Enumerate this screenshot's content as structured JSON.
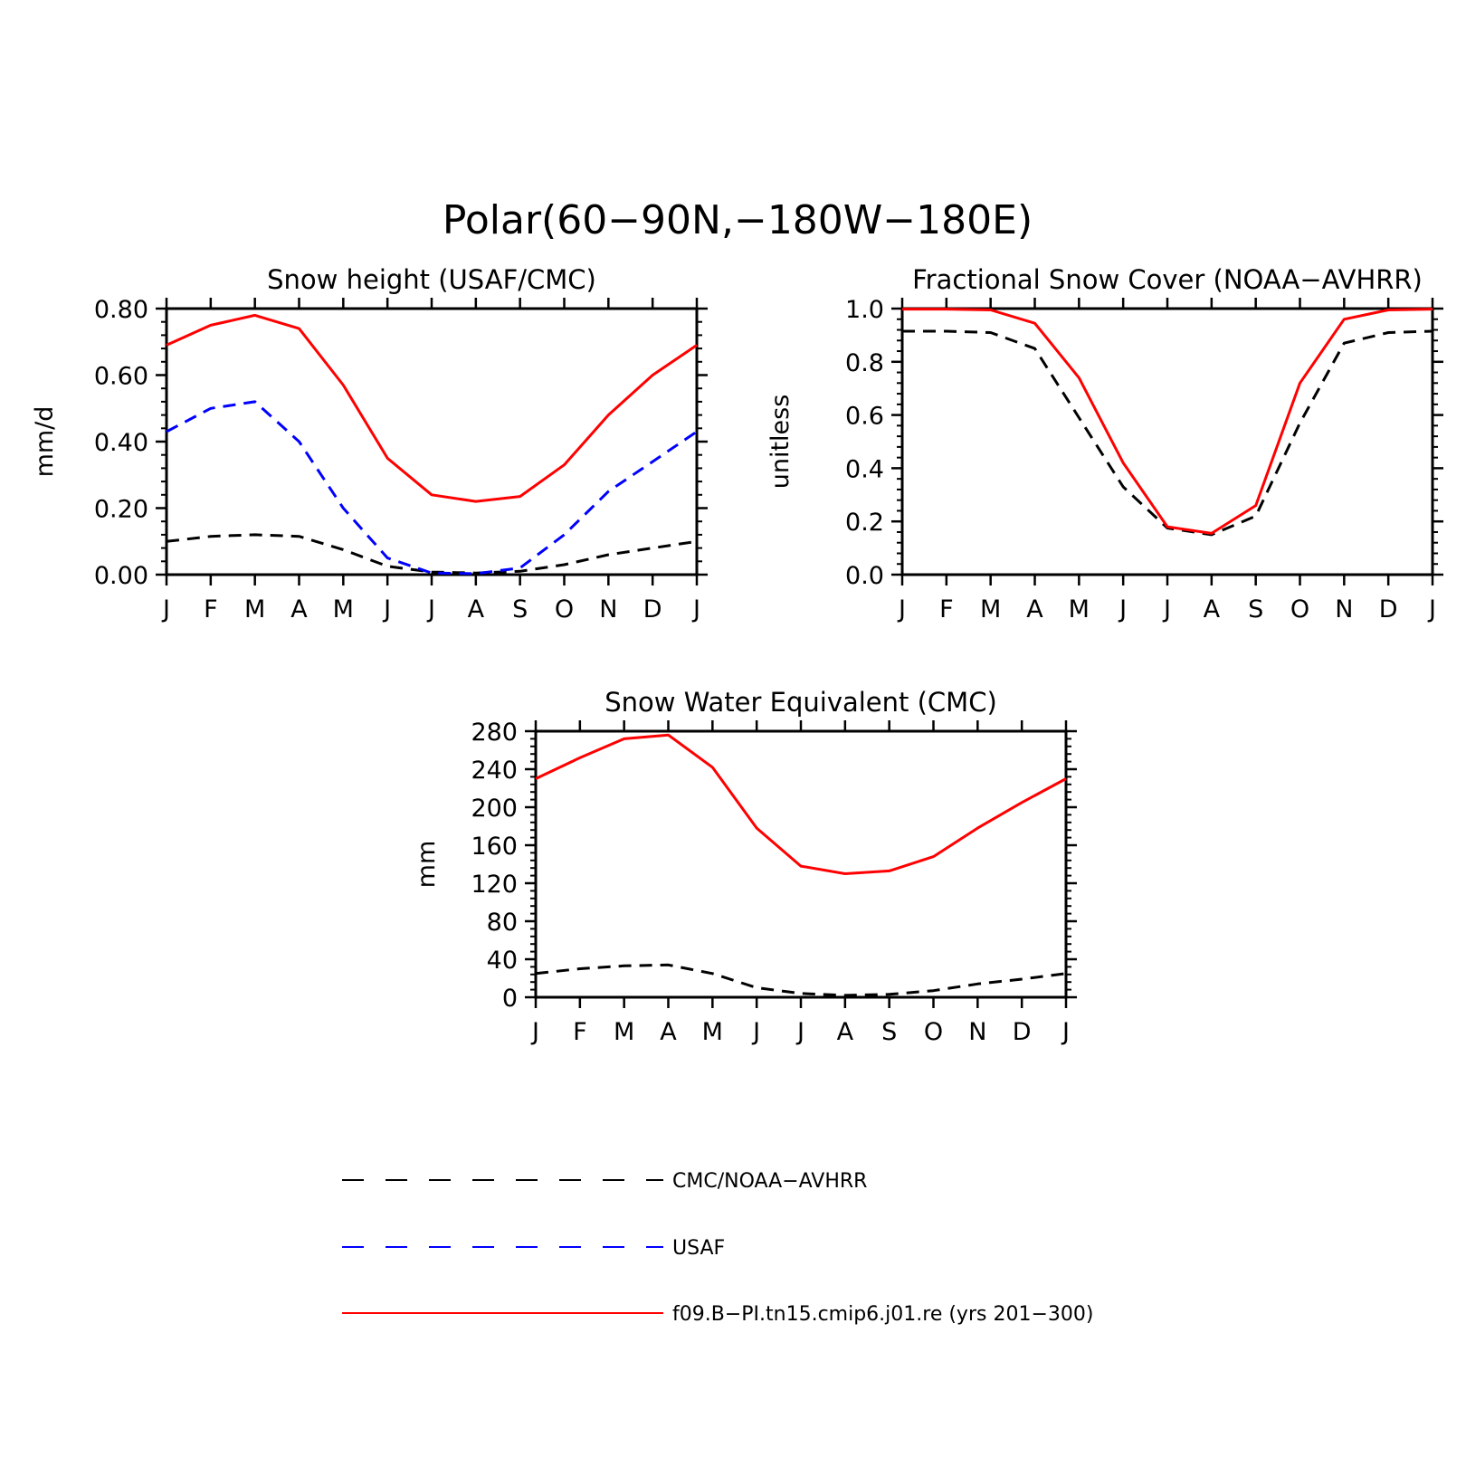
{
  "figure": {
    "title": "Polar(60−90N,−180W−180E)"
  },
  "colors": {
    "model": "#ff0000",
    "obs_black": "#000000",
    "obs_blue": "#0000ff"
  },
  "legend": {
    "items": [
      {
        "label": "CMC/NOAA−AVHRR",
        "color": "#000000",
        "dash": "dashed"
      },
      {
        "label": "USAF",
        "color": "#0000ff",
        "dash": "dashed"
      },
      {
        "label": "f09.B−PI.tn15.cmip6.j01.re (yrs 201−300)",
        "color": "#ff0000",
        "dash": "solid"
      }
    ]
  },
  "chart_data": [
    {
      "type": "line",
      "title": "Snow height (USAF/CMC)",
      "xlabel": "",
      "ylabel": "mm/d",
      "categories": [
        "J",
        "F",
        "M",
        "A",
        "M",
        "J",
        "J",
        "A",
        "S",
        "O",
        "N",
        "D",
        "J"
      ],
      "ylim": [
        0,
        0.8
      ],
      "yticks": [
        0,
        0.2,
        0.4,
        0.6,
        0.8
      ],
      "ytick_labels": [
        "0.00",
        "0.20",
        "0.40",
        "0.60",
        "0.80"
      ],
      "yminor_step": 0.04,
      "series": [
        {
          "name": "f09.B−PI.tn15.cmip6.j01.re (yrs 201−300)",
          "color": "#ff0000",
          "dash": "solid",
          "values": [
            0.69,
            0.75,
            0.78,
            0.74,
            0.57,
            0.35,
            0.24,
            0.22,
            0.235,
            0.33,
            0.48,
            0.6,
            0.69
          ]
        },
        {
          "name": "USAF",
          "color": "#0000ff",
          "dash": "dashed",
          "values": [
            0.43,
            0.5,
            0.52,
            0.4,
            0.2,
            0.05,
            0.005,
            0.003,
            0.02,
            0.12,
            0.25,
            0.34,
            0.43
          ]
        },
        {
          "name": "CMC/NOAA−AVHRR",
          "color": "#000000",
          "dash": "dashed",
          "values": [
            0.1,
            0.115,
            0.12,
            0.115,
            0.075,
            0.025,
            0.008,
            0.005,
            0.01,
            0.03,
            0.06,
            0.08,
            0.1
          ]
        }
      ]
    },
    {
      "type": "line",
      "title": "Fractional Snow Cover (NOAA−AVHRR)",
      "xlabel": "",
      "ylabel": "unitless",
      "categories": [
        "J",
        "F",
        "M",
        "A",
        "M",
        "J",
        "J",
        "A",
        "S",
        "O",
        "N",
        "D",
        "J"
      ],
      "ylim": [
        0,
        1.0
      ],
      "yticks": [
        0,
        0.2,
        0.4,
        0.6,
        0.8,
        1.0
      ],
      "ytick_labels": [
        "0.0",
        "0.2",
        "0.4",
        "0.6",
        "0.8",
        "1.0"
      ],
      "yminor_step": 0.04,
      "series": [
        {
          "name": "f09.B−PI.tn15.cmip6.j01.re (yrs 201−300)",
          "color": "#ff0000",
          "dash": "solid",
          "values": [
            0.998,
            0.998,
            0.995,
            0.945,
            0.74,
            0.42,
            0.18,
            0.155,
            0.26,
            0.72,
            0.96,
            0.995,
            0.998
          ]
        },
        {
          "name": "CMC/NOAA−AVHRR",
          "color": "#000000",
          "dash": "dashed",
          "values": [
            0.915,
            0.915,
            0.91,
            0.85,
            0.59,
            0.33,
            0.175,
            0.15,
            0.22,
            0.57,
            0.87,
            0.91,
            0.915
          ]
        }
      ]
    },
    {
      "type": "line",
      "title": "Snow Water Equivalent (CMC)",
      "xlabel": "",
      "ylabel": "mm",
      "categories": [
        "J",
        "F",
        "M",
        "A",
        "M",
        "J",
        "J",
        "A",
        "S",
        "O",
        "N",
        "D",
        "J"
      ],
      "ylim": [
        0,
        280
      ],
      "yticks": [
        0,
        40,
        80,
        120,
        160,
        200,
        240,
        280
      ],
      "ytick_labels": [
        "0",
        "40",
        "80",
        "120",
        "160",
        "200",
        "240",
        "280"
      ],
      "yminor_step": 8,
      "series": [
        {
          "name": "f09.B−PI.tn15.cmip6.j01.re (yrs 201−300)",
          "color": "#ff0000",
          "dash": "solid",
          "values": [
            230,
            252,
            272,
            276,
            242,
            178,
            138,
            130,
            133,
            148,
            178,
            205,
            230
          ]
        },
        {
          "name": "CMC/NOAA−AVHRR",
          "color": "#000000",
          "dash": "dashed",
          "values": [
            25,
            30,
            33,
            34,
            25,
            10,
            4,
            2,
            3,
            7,
            14,
            19,
            25
          ]
        }
      ]
    }
  ]
}
